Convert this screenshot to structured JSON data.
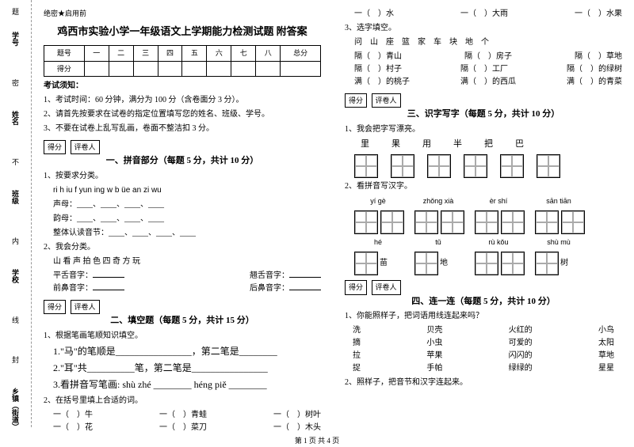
{
  "confidential": "绝密★启用前",
  "title": "鸡西市实验小学一年级语文上学期能力检测试题 附答案",
  "score_headers": [
    "题号",
    "一",
    "二",
    "三",
    "四",
    "五",
    "六",
    "七",
    "八",
    "总分"
  ],
  "score_row": "得分",
  "notice_title": "考试须知：",
  "notices": [
    "1、考试时间：60 分钟，满分为 100 分（含卷面分 3 分）。",
    "2、请首先按要求在试卷的指定位置填写您的姓名、班级、学号。",
    "3、不要在试卷上乱写乱画，卷面不整洁扣 3 分。"
  ],
  "grader": "得分",
  "grader2": "评卷人",
  "sec1": {
    "title": "一、拼音部分（每题 5 分，共计 10 分）",
    "q1": "1、按要求分类。",
    "letters": "ri   h   iu   f   yun  ing   w   b   üe   an   zi   wu",
    "rows": [
      "声母：____、____、____、____",
      "韵母：____、____、____、____",
      "整体认读音节：____、____、____、____"
    ],
    "q2": "2、我会分类。",
    "chars": "山  看  声  拍  色  四  奇  方  玩",
    "sub": [
      "平舌音字：",
      "前鼻音字：",
      "翘舌音字：",
      "后鼻音字："
    ]
  },
  "sec2": {
    "title": "二、填空题（每题 5 分，共计 15 分）",
    "q1": "1、根据笔画笔顺知识填空。",
    "items": [
      "1.\"马\"的笔顺是________________，第二笔是________",
      "2.\"耳\"共__________笔，第二笔是________________",
      "3.看拼音写笔画: shù zhé ________   héng piě ________"
    ],
    "q2": "2、在括号里填上合适的词。",
    "fills": [
      [
        "一（　）牛",
        "一（　）青蛙",
        "一（　）树叶"
      ],
      [
        "一（　）花",
        "一（　）菜刀",
        "一（　）木头"
      ],
      [
        "一（　）水",
        "一（　）大雨",
        "一（　）水果"
      ]
    ]
  },
  "sec2b": {
    "q3": "3、选字填空。",
    "chars": "问　山　座　篮　家　车　块　地　个",
    "rows": [
      [
        "隔（　）青山",
        "隔（　）房子",
        "隔（　）草地"
      ],
      [
        "隔（　）村子",
        "隔（　）工厂",
        "隔（　）的绿树"
      ],
      [
        "满（　）的桃子",
        "满（　）的西瓜",
        "满（　）的青菜"
      ]
    ]
  },
  "sec3": {
    "title": "三、识字写字（每题 5 分，共计 10 分）",
    "q1": "1、我会把字写漂亮。",
    "chars1": [
      "里",
      "果",
      "用",
      "半",
      "把",
      "巴"
    ],
    "q2": "2、看拼音写汉字。",
    "py": [
      [
        "yí  gè",
        "zhǒng xià",
        "èr  shí",
        "sān tiān"
      ],
      [
        "hé",
        "tǔ",
        "rù  kǒu",
        "shù  mù"
      ]
    ],
    "labels2": [
      "苗",
      "地",
      "",
      "树"
    ]
  },
  "sec4": {
    "title": "四、连一连（每题 5 分，共计 10 分）",
    "q1": "1、你能照样子，把词语用线连起来吗？",
    "pairs": [
      [
        "洗",
        "贝壳",
        "火红的",
        "小鸟"
      ],
      [
        "摘",
        "小虫",
        "可爱的",
        "太阳"
      ],
      [
        "拉",
        "苹果",
        "闪闪的",
        "草地"
      ],
      [
        "捉",
        "手帕",
        "绿绿的",
        "星星"
      ]
    ],
    "q2": "2、照样子，把音节和汉字连起来。"
  },
  "gutter": {
    "labels": [
      "学号",
      "姓名",
      "班级",
      "学校",
      "乡镇（街道）"
    ],
    "dots": [
      "题",
      "密",
      "不",
      "内",
      "线",
      "封"
    ]
  },
  "footer": "第 1 页  共 4 页"
}
